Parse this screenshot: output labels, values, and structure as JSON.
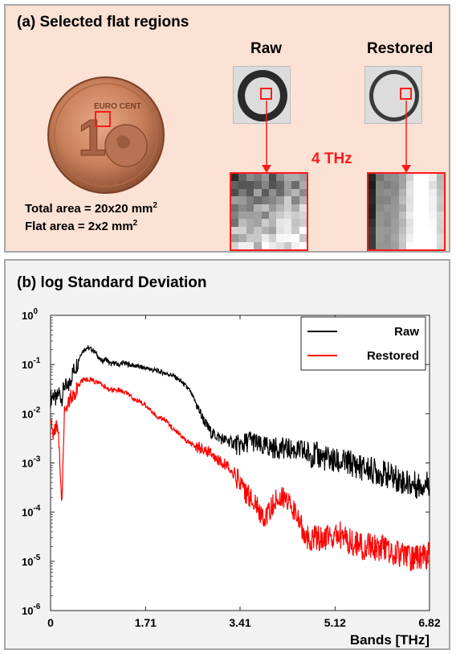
{
  "panel_a": {
    "title": "(a) Selected flat regions",
    "raw_label": "Raw",
    "restored_label": "Restored",
    "freq_label": "4 THz",
    "total_area": "Total area = 20x20 mm",
    "flat_area": "Flat area = 2x2 mm",
    "area_exponent": "2",
    "coin_text": "EURO CENT",
    "coin_value": "1",
    "colors": {
      "roi": "#ff1a1a",
      "coin": "#c8805a"
    }
  },
  "panel_b": {
    "title": "(b) log Standard Deviation"
  },
  "chart_data": {
    "type": "line",
    "title": "",
    "xlabel": "Bands [THz]",
    "ylabel": "",
    "yscale": "log",
    "xlim": [
      0,
      6.82
    ],
    "ylim": [
      1e-06,
      1
    ],
    "xticks": [
      0,
      1.71,
      3.41,
      5.12,
      6.82
    ],
    "xtick_labels": [
      "0",
      "1.71",
      "3.41",
      "5.12",
      "6.82"
    ],
    "ytick_exponents": [
      0,
      -1,
      -2,
      -3,
      -4,
      -5,
      -6
    ],
    "ytick_base": "10",
    "grid": false,
    "legend_position": "top-right",
    "series": [
      {
        "name": "Raw",
        "color": "#000000",
        "x": [
          0,
          0.05,
          0.1,
          0.15,
          0.2,
          0.25,
          0.3,
          0.35,
          0.4,
          0.45,
          0.5,
          0.55,
          0.6,
          0.65,
          0.7,
          0.75,
          0.8,
          0.85,
          0.9,
          0.95,
          1.0,
          1.05,
          1.1,
          1.15,
          1.2,
          1.25,
          1.3,
          1.4,
          1.5,
          1.6,
          1.7,
          1.8,
          1.9,
          2.0,
          2.1,
          2.2,
          2.3,
          2.4,
          2.5,
          2.6,
          2.7,
          2.8,
          2.9,
          3.0,
          3.1,
          3.2,
          3.3,
          3.4,
          3.5,
          3.6,
          3.7,
          3.8,
          3.9,
          4.0,
          4.2,
          4.4,
          4.6,
          4.8,
          5.0,
          5.2,
          5.4,
          5.6,
          5.8,
          6.0,
          6.2,
          6.4,
          6.6,
          6.82
        ],
        "y": [
          0.02,
          0.025,
          0.018,
          0.028,
          0.02,
          0.04,
          0.03,
          0.045,
          0.07,
          0.09,
          0.12,
          0.17,
          0.2,
          0.22,
          0.21,
          0.2,
          0.18,
          0.15,
          0.12,
          0.12,
          0.13,
          0.11,
          0.1,
          0.11,
          0.1,
          0.1,
          0.11,
          0.1,
          0.095,
          0.09,
          0.085,
          0.08,
          0.075,
          0.07,
          0.065,
          0.06,
          0.05,
          0.04,
          0.03,
          0.018,
          0.01,
          0.006,
          0.004,
          0.0035,
          0.003,
          0.0028,
          0.0025,
          0.0022,
          0.0025,
          0.003,
          0.0025,
          0.002,
          0.0022,
          0.002,
          0.002,
          0.0018,
          0.0016,
          0.0014,
          0.0012,
          0.001,
          0.001,
          0.0008,
          0.0007,
          0.0006,
          0.0005,
          0.0004,
          0.00035,
          0.0004
        ]
      },
      {
        "name": "Restored",
        "color": "#ff0000",
        "x": [
          0,
          0.05,
          0.1,
          0.15,
          0.2,
          0.25,
          0.3,
          0.35,
          0.4,
          0.45,
          0.5,
          0.55,
          0.6,
          0.65,
          0.7,
          0.75,
          0.8,
          0.85,
          0.9,
          0.95,
          1.0,
          1.05,
          1.1,
          1.2,
          1.3,
          1.4,
          1.5,
          1.6,
          1.7,
          1.8,
          1.9,
          2.0,
          2.1,
          2.2,
          2.3,
          2.4,
          2.5,
          2.6,
          2.7,
          2.8,
          2.9,
          3.0,
          3.1,
          3.2,
          3.3,
          3.4,
          3.5,
          3.6,
          3.7,
          3.8,
          3.9,
          4.0,
          4.1,
          4.2,
          4.3,
          4.4,
          4.5,
          4.6,
          4.8,
          5.0,
          5.2,
          5.4,
          5.6,
          5.8,
          6.0,
          6.2,
          6.4,
          6.6,
          6.82
        ],
        "y": [
          0.006,
          0.004,
          0.006,
          0.003,
          0.00015,
          0.012,
          0.015,
          0.02,
          0.025,
          0.03,
          0.038,
          0.045,
          0.05,
          0.05,
          0.05,
          0.05,
          0.045,
          0.042,
          0.04,
          0.035,
          0.035,
          0.032,
          0.03,
          0.03,
          0.028,
          0.025,
          0.02,
          0.018,
          0.015,
          0.012,
          0.009,
          0.008,
          0.007,
          0.005,
          0.004,
          0.003,
          0.0025,
          0.0022,
          0.002,
          0.0018,
          0.0015,
          0.0012,
          0.001,
          0.0008,
          0.0006,
          0.0004,
          0.00025,
          0.0002,
          0.00015,
          8e-05,
          9e-05,
          0.00015,
          0.0002,
          0.0002,
          0.00015,
          0.0001,
          6e-05,
          3e-05,
          3e-05,
          3e-05,
          3.5e-05,
          2.5e-05,
          2e-05,
          2e-05,
          1.8e-05,
          1.5e-05,
          1.2e-05,
          1.2e-05,
          1.3e-05
        ]
      }
    ]
  }
}
